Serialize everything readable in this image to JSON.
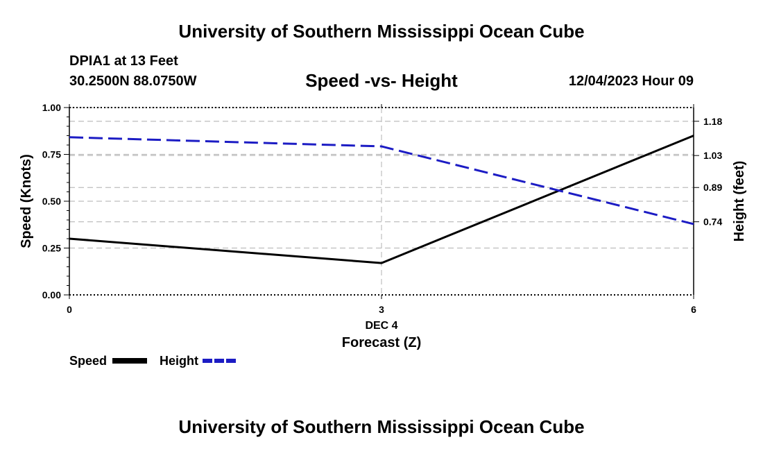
{
  "header": {
    "title": "University of Southern Mississippi Ocean Cube",
    "station": "DPIA1 at 13 Feet",
    "coords": "30.2500N  88.0750W",
    "subtitle": "Speed -vs- Height",
    "datetime": "12/04/2023 Hour 09"
  },
  "footer": {
    "title": "University of Southern Mississippi Ocean Cube"
  },
  "colors": {
    "speed": "#000000",
    "height": "#1c1cc4",
    "grid": "#bdbdbd"
  },
  "chart_data": {
    "type": "line",
    "x": [
      0,
      3,
      6
    ],
    "x_ticks": [
      0,
      3,
      6
    ],
    "x_tick_labels": [
      "0",
      "3",
      "6"
    ],
    "x_date_label": "DEC 4",
    "xlabel": "Forecast (Z)",
    "xlim": [
      0,
      6
    ],
    "ylabel_left": "Speed (Knots)",
    "ylim_left": [
      0,
      1
    ],
    "y_ticks_left": [
      0,
      0.25,
      0.5,
      0.75,
      1.0
    ],
    "y_tick_labels_left": [
      "0.00",
      "0.25",
      "0.50",
      "0.75",
      "1.00"
    ],
    "ylabel_right": "Height (feet)",
    "ylim_right": [
      0.42,
      1.24
    ],
    "y_ticks_right": [
      0.74,
      0.89,
      1.03,
      1.18
    ],
    "y_tick_labels_right": [
      "0.74",
      "0.89",
      "1.03",
      "1.18"
    ],
    "series": [
      {
        "name": "Speed",
        "axis": "left",
        "style": "solid",
        "values": [
          0.3,
          0.17,
          0.85
        ]
      },
      {
        "name": "Height",
        "axis": "right",
        "style": "dashed",
        "values": [
          1.11,
          1.07,
          0.73
        ]
      }
    ],
    "legend": [
      "Speed",
      "Height"
    ],
    "grid": true
  }
}
